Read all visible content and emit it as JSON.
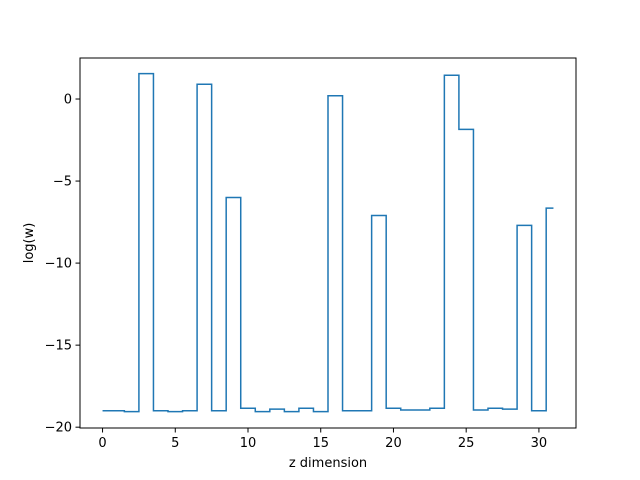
{
  "chart_data": {
    "type": "line",
    "drawstyle": "steps-mid",
    "title": "",
    "xlabel": "z dimension",
    "ylabel": "log(w)",
    "xlim": [
      -1.55,
      32.55
    ],
    "ylim": [
      -20.05,
      2.5
    ],
    "xticks": [
      0,
      5,
      10,
      15,
      20,
      25,
      30
    ],
    "yticks": [
      0,
      -5,
      -10,
      -15,
      -20
    ],
    "xtick_labels": [
      "0",
      "5",
      "10",
      "15",
      "20",
      "25",
      "30"
    ],
    "ytick_labels": [
      "0",
      "−5",
      "−10",
      "−15",
      "−20"
    ],
    "grid": false,
    "series": [
      {
        "color": "#1f77b4",
        "x": [
          0,
          1,
          2,
          3,
          4,
          5,
          6,
          7,
          8,
          9,
          10,
          11,
          12,
          13,
          14,
          15,
          16,
          17,
          18,
          19,
          20,
          21,
          22,
          23,
          24,
          25,
          26,
          27,
          28,
          29,
          30,
          31
        ],
        "values": [
          -19.0,
          -19.0,
          -19.05,
          1.55,
          -19.0,
          -19.05,
          -19.0,
          0.9,
          -19.0,
          -6.0,
          -18.85,
          -19.05,
          -18.9,
          -19.05,
          -18.85,
          -19.05,
          0.2,
          -19.0,
          -19.0,
          -7.1,
          -18.85,
          -18.95,
          -18.95,
          -18.85,
          1.45,
          -1.85,
          -18.95,
          -18.85,
          -18.9,
          -7.7,
          -19.0,
          -6.65
        ]
      }
    ]
  }
}
